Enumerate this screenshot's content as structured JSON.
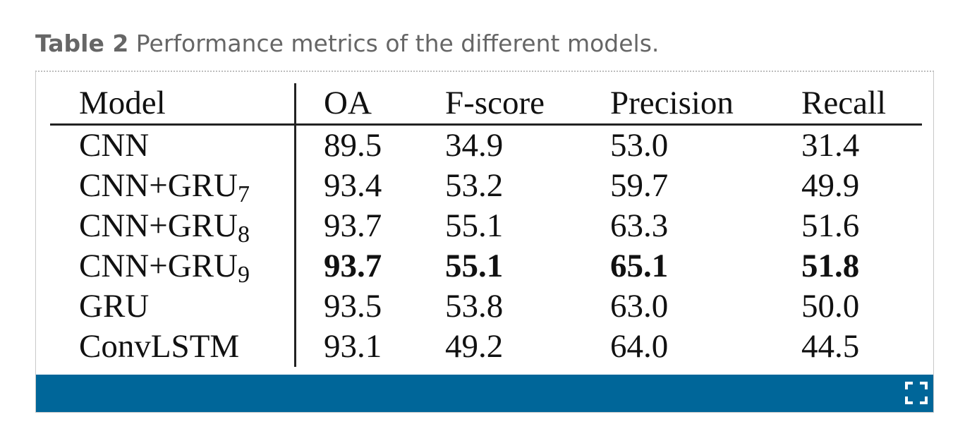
{
  "caption": {
    "label": "Table 2",
    "text": "Performance metrics of the different models."
  },
  "table": {
    "headers": [
      "Model",
      "OA",
      "F-score",
      "Precision",
      "Recall"
    ],
    "rows": [
      {
        "model": "CNN",
        "sub": "",
        "oa": "89.5",
        "fscore": "34.9",
        "precision": "53.0",
        "recall": "31.4",
        "bold": false
      },
      {
        "model": "CNN+GRU",
        "sub": "7",
        "oa": "93.4",
        "fscore": "53.2",
        "precision": "59.7",
        "recall": "49.9",
        "bold": false
      },
      {
        "model": "CNN+GRU",
        "sub": "8",
        "oa": "93.7",
        "fscore": "55.1",
        "precision": "63.3",
        "recall": "51.6",
        "bold": false
      },
      {
        "model": "CNN+GRU",
        "sub": "9",
        "oa": "93.7",
        "fscore": "55.1",
        "precision": "65.1",
        "recall": "51.8",
        "bold": true
      },
      {
        "model": "GRU",
        "sub": "",
        "oa": "93.5",
        "fscore": "53.8",
        "precision": "63.0",
        "recall": "50.0",
        "bold": false
      },
      {
        "model": "ConvLSTM",
        "sub": "",
        "oa": "93.1",
        "fscore": "49.2",
        "precision": "64.0",
        "recall": "44.5",
        "bold": false
      }
    ]
  },
  "footer": {
    "bar_color": "#006699",
    "expand_icon": "expand-icon"
  }
}
